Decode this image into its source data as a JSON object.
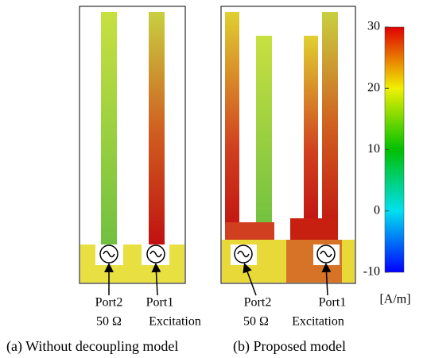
{
  "panels": [
    {
      "caption": "(a) Without decoupling model",
      "ports": [
        {
          "name": "Port2",
          "note": "50 Ω"
        },
        {
          "name": "Port1",
          "note": "Excitation"
        }
      ]
    },
    {
      "caption": "(b) Proposed model",
      "ports": [
        {
          "name": "Port2",
          "note": "50 Ω"
        },
        {
          "name": "Port1",
          "note": "Excitation"
        }
      ]
    }
  ],
  "colorbar": {
    "lim": [
      -10,
      30
    ],
    "ticks": [
      30,
      20,
      10,
      0,
      -10
    ],
    "unit": "[A/m]"
  }
}
